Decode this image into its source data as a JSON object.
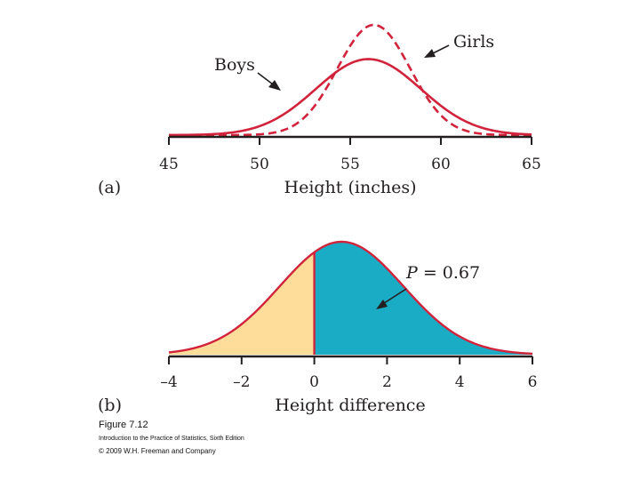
{
  "chart_data": [
    {
      "type": "line",
      "panel_label": "(a)",
      "xlabel": "Height (inches)",
      "ylabel": "",
      "xlim": [
        45,
        65
      ],
      "xticks": [
        45,
        50,
        55,
        60,
        65
      ],
      "series": [
        {
          "name": "Boys",
          "line_style": "solid",
          "color": "#d2233c",
          "mean": 56.0,
          "sd": 2.9,
          "x": [
            45,
            47.5,
            50,
            52.5,
            55,
            56,
            57.5,
            60,
            62.5,
            65
          ],
          "y": [
            0.0014,
            0.0051,
            0.016,
            0.0366,
            0.1302,
            0.1376,
            0.1289,
            0.0531,
            0.0173,
            0.004
          ]
        },
        {
          "name": "Girls",
          "line_style": "dashed",
          "color": "#d2233c",
          "mean": 56.3,
          "sd": 2.0,
          "x": [
            45,
            47.5,
            50,
            52.5,
            55,
            56.3,
            57.5,
            60,
            62.5,
            65
          ],
          "y": [
            0.0,
            0.0001,
            0.0011,
            0.0323,
            0.1608,
            0.1995,
            0.1668,
            0.0359,
            0.0015,
            0.0
          ]
        }
      ],
      "annotations": [
        "Boys",
        "Girls"
      ]
    },
    {
      "type": "area",
      "panel_label": "(b)",
      "xlabel": "Height difference",
      "ylabel": "",
      "xlim": [
        -4,
        6
      ],
      "xticks": [
        "–4",
        "–2",
        "0",
        "2",
        "4",
        "6"
      ],
      "xtick_values": [
        -4,
        -2,
        0,
        2,
        4,
        6
      ],
      "distribution": {
        "mean": 0.75,
        "sd": 1.7
      },
      "shaded_regions": [
        {
          "from": -4,
          "to": 0,
          "color": "#fedd9a"
        },
        {
          "from": 0,
          "to": 6,
          "color": "#1aabc5"
        }
      ],
      "annotation": {
        "prefix": "P",
        "text": " = 0.67",
        "value": 0.67
      }
    }
  ],
  "caption": {
    "title": "Figure 7.12",
    "subtitle": "Introduction to the Practice of Statistics, Sixth Edition",
    "copyright": "© 2009 W.H. Freeman and Company"
  }
}
